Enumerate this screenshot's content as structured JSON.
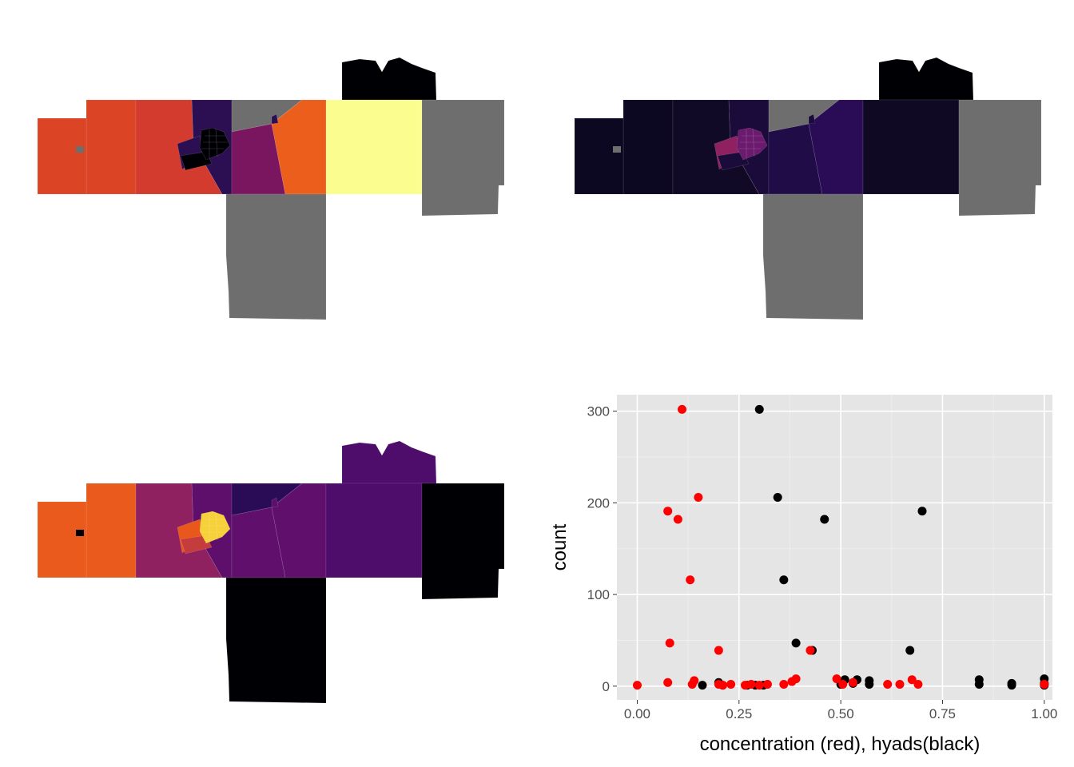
{
  "colors": {
    "no_data": "#6e6e6e",
    "panel_bg": "#e5e5e5",
    "grid_major": "#ffffff",
    "grid_minor": "#f0f0f0",
    "concentration": "#ff0000",
    "hyads": "#000000"
  },
  "maps": [
    {
      "name": "map-top-left",
      "regions": {
        "west_county": "#db4526",
        "west_notch": "#db4526",
        "center_west": "#d33b2f",
        "center_purple": "#2c0f52",
        "center_mid": "#7a1660",
        "center_east": "#eb5e1c",
        "yellow_county": "#fbfd8e",
        "east_county": "#6e6e6e",
        "north_bump": "#000004",
        "south_county": "#6e6e6e",
        "north_wedge": "#6e6e6e",
        "urban_core": "#000004",
        "urban_west": "#2c0f52",
        "urban_sw": "#000004"
      }
    },
    {
      "name": "map-top-right",
      "regions": {
        "west_county": "#0d0822",
        "west_notch": "#0d0822",
        "center_west": "#100a26",
        "center_purple": "#1a0b3a",
        "center_mid": "#200c47",
        "center_east": "#2a0b55",
        "yellow_county": "#0f0924",
        "east_county": "#6e6e6e",
        "north_bump": "#000004",
        "south_county": "#6e6e6e",
        "north_wedge": "#6e6e6e",
        "urban_core": "#6b1a6e",
        "urban_west": "#8f2160",
        "urban_sw": "#1a0b3a"
      }
    },
    {
      "name": "map-bottom-left",
      "regions": {
        "west_county": "#ea5a1d",
        "west_notch": "#ea5a1d",
        "center_west": "#8f2161",
        "center_purple": "#5e0f6b",
        "center_mid": "#60106c",
        "center_east": "#60106c",
        "yellow_county": "#4e0c6b",
        "east_county": "#000004",
        "north_bump": "#4e0c6b",
        "south_county": "#000004",
        "north_wedge": "#2a0b55",
        "urban_core": "#f6d13a",
        "urban_west": "#e9571c",
        "urban_sw": "#c53c3c"
      }
    }
  ],
  "chart_data": {
    "type": "scatter",
    "xlabel": "concentration (red), hyads(black)",
    "ylabel": "count",
    "xlim": [
      -0.05,
      1.02
    ],
    "ylim": [
      -15,
      318
    ],
    "x_ticks": [
      0.0,
      0.25,
      0.5,
      0.75,
      1.0
    ],
    "x_tick_labels": [
      "0.00",
      "0.25",
      "0.50",
      "0.75",
      "1.00"
    ],
    "y_ticks": [
      0,
      100,
      200,
      300
    ],
    "y_tick_labels": [
      "0",
      "100",
      "200",
      "300"
    ],
    "grid": true,
    "legend": "none",
    "series": [
      {
        "color": "#000000",
        "points": [
          [
            0.3,
            302
          ],
          [
            0.345,
            206
          ],
          [
            0.46,
            182
          ],
          [
            0.7,
            191
          ],
          [
            0.36,
            116
          ],
          [
            0.39,
            47
          ],
          [
            0.43,
            39
          ],
          [
            0.67,
            39
          ],
          [
            0.16,
            1
          ],
          [
            0.2,
            4
          ],
          [
            0.21,
            1
          ],
          [
            0.27,
            1
          ],
          [
            0.29,
            1
          ],
          [
            0.31,
            1
          ],
          [
            0.5,
            2
          ],
          [
            0.51,
            7
          ],
          [
            0.53,
            3
          ],
          [
            0.54,
            7
          ],
          [
            0.57,
            6
          ],
          [
            0.57,
            2
          ],
          [
            0.84,
            7
          ],
          [
            0.84,
            2
          ],
          [
            0.92,
            3
          ],
          [
            0.92,
            1
          ],
          [
            1.0,
            8
          ],
          [
            1.0,
            3
          ],
          [
            1.0,
            1
          ]
        ]
      },
      {
        "color": "#ff0000",
        "points": [
          [
            0.11,
            302
          ],
          [
            0.15,
            206
          ],
          [
            0.075,
            191
          ],
          [
            0.1,
            182
          ],
          [
            0.13,
            116
          ],
          [
            0.08,
            47
          ],
          [
            0.2,
            39
          ],
          [
            0.425,
            39
          ],
          [
            0.0,
            1
          ],
          [
            0.075,
            4
          ],
          [
            0.135,
            2
          ],
          [
            0.14,
            6
          ],
          [
            0.2,
            2
          ],
          [
            0.21,
            1
          ],
          [
            0.23,
            2
          ],
          [
            0.265,
            1
          ],
          [
            0.28,
            2
          ],
          [
            0.3,
            1
          ],
          [
            0.32,
            2
          ],
          [
            0.36,
            2
          ],
          [
            0.38,
            5
          ],
          [
            0.39,
            8
          ],
          [
            0.49,
            8
          ],
          [
            0.505,
            2
          ],
          [
            0.53,
            4
          ],
          [
            0.615,
            2
          ],
          [
            0.645,
            2
          ],
          [
            0.675,
            7
          ],
          [
            0.69,
            2
          ],
          [
            1.0,
            2
          ]
        ]
      }
    ]
  }
}
